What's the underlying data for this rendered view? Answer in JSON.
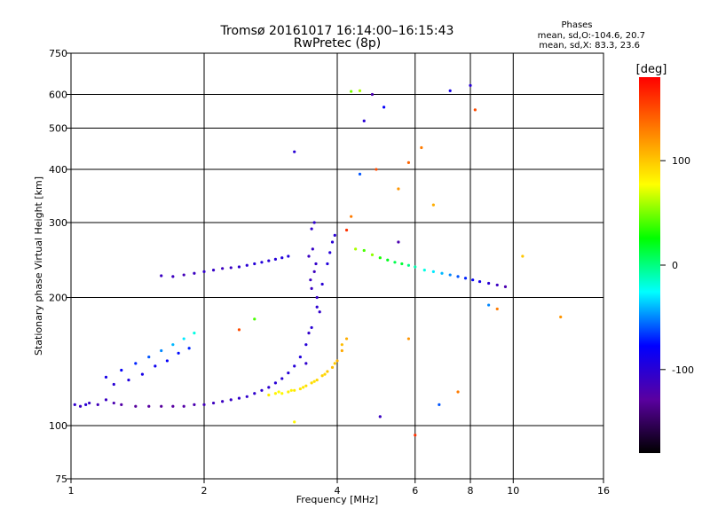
{
  "chart_data": {
    "type": "scatter",
    "title": "Tromsø 20161017 16:14:00–16:15:43",
    "subtitle": "RwPretec (8p)",
    "xlabel": "Frequency [MHz]",
    "ylabel": "Stationary phase Virtual Height [km]",
    "x_scale": "log",
    "y_scale": "log",
    "xlim": [
      1,
      16
    ],
    "ylim": [
      75,
      750
    ],
    "x_ticks": [
      1,
      2,
      4,
      6,
      8,
      10,
      16
    ],
    "y_ticks": [
      75,
      100,
      200,
      300,
      400,
      500,
      600,
      750
    ],
    "grid": true,
    "stats": {
      "title": "Phases",
      "line_o": "mean, sd,O:-104.6, 20.7",
      "line_x": "mean, sd,X:  83.3, 23.6"
    },
    "colorbar": {
      "label": "[deg]",
      "range": [
        -180,
        180
      ],
      "ticks": [
        100,
        0,
        -100
      ],
      "colors": [
        "#ff0000",
        "#ff8000",
        "#ffff00",
        "#00ff00",
        "#00ffff",
        "#0000ff",
        "#5a00a0",
        "#000000"
      ]
    },
    "series": [
      {
        "values": [
          [
            1.02,
            112,
            -105
          ],
          [
            1.05,
            111,
            -110
          ],
          [
            1.08,
            112,
            -100
          ],
          [
            1.1,
            113,
            -108
          ],
          [
            1.15,
            112,
            -115
          ],
          [
            1.2,
            115,
            -110
          ],
          [
            1.25,
            113,
            -120
          ],
          [
            1.3,
            112,
            -125
          ],
          [
            1.4,
            111,
            -130
          ],
          [
            1.5,
            111,
            -128
          ],
          [
            1.6,
            111,
            -130
          ],
          [
            1.7,
            111,
            -128
          ],
          [
            1.8,
            111,
            -125
          ],
          [
            1.9,
            112,
            -120
          ],
          [
            2.0,
            112,
            -115
          ],
          [
            2.1,
            113,
            -112
          ],
          [
            2.2,
            114,
            -110
          ],
          [
            2.3,
            115,
            -108
          ],
          [
            2.4,
            116,
            -106
          ],
          [
            2.5,
            117,
            -104
          ],
          [
            2.6,
            119,
            -104
          ],
          [
            2.7,
            121,
            -102
          ],
          [
            2.8,
            123,
            -102
          ],
          [
            2.9,
            126,
            -100
          ],
          [
            3.0,
            129,
            -100
          ],
          [
            3.1,
            133,
            -98
          ],
          [
            3.2,
            138,
            -98
          ],
          [
            3.3,
            145,
            -96
          ],
          [
            3.4,
            155,
            -98
          ],
          [
            3.5,
            170,
            -100
          ],
          [
            3.6,
            190,
            -102
          ],
          [
            3.7,
            215,
            -100
          ],
          [
            3.8,
            240,
            -96
          ],
          [
            3.85,
            255,
            -98
          ],
          [
            3.9,
            270,
            -100
          ],
          [
            3.95,
            280,
            -100
          ],
          [
            3.5,
            210,
            -110
          ],
          [
            3.55,
            230,
            -112
          ],
          [
            3.45,
            250,
            -110
          ],
          [
            3.5,
            290,
            -105
          ],
          [
            3.55,
            300,
            -104
          ],
          [
            3.6,
            200,
            -108
          ],
          [
            3.65,
            185,
            -106
          ],
          [
            3.4,
            140,
            -104
          ],
          [
            3.45,
            165,
            -106
          ],
          [
            3.52,
            260,
            -108
          ],
          [
            3.48,
            220,
            -110
          ],
          [
            3.58,
            240,
            -106
          ]
        ]
      },
      {
        "values": [
          [
            2.8,
            118,
            85
          ],
          [
            2.9,
            119,
            82
          ],
          [
            3.0,
            119,
            80
          ],
          [
            3.1,
            120,
            84
          ],
          [
            3.2,
            121,
            86
          ],
          [
            3.3,
            122,
            88
          ],
          [
            3.4,
            124,
            90
          ],
          [
            3.5,
            126,
            92
          ],
          [
            3.6,
            128,
            94
          ],
          [
            3.7,
            131,
            96
          ],
          [
            3.8,
            134,
            100
          ],
          [
            3.9,
            137,
            104
          ],
          [
            4.0,
            142,
            108
          ],
          [
            4.1,
            150,
            112
          ],
          [
            4.2,
            160,
            110
          ],
          [
            4.1,
            155,
            104
          ],
          [
            3.95,
            140,
            98
          ],
          [
            3.75,
            132,
            92
          ],
          [
            3.55,
            127,
            88
          ],
          [
            3.35,
            123,
            86
          ],
          [
            3.15,
            121,
            82
          ],
          [
            2.95,
            120,
            78
          ]
        ]
      },
      {
        "values": [
          [
            1.6,
            225,
            -110
          ],
          [
            1.7,
            224,
            -112
          ],
          [
            1.8,
            226,
            -115
          ],
          [
            1.9,
            228,
            -110
          ],
          [
            2.0,
            230,
            -105
          ],
          [
            2.1,
            232,
            -108
          ],
          [
            2.2,
            234,
            -112
          ],
          [
            2.3,
            235,
            -110
          ],
          [
            2.4,
            236,
            -104
          ],
          [
            2.5,
            238,
            -100
          ],
          [
            2.6,
            240,
            -98
          ],
          [
            2.7,
            242,
            -96
          ],
          [
            2.8,
            244,
            -100
          ],
          [
            2.9,
            246,
            -98
          ],
          [
            3.0,
            248,
            -96
          ],
          [
            3.1,
            250,
            -95
          ]
        ]
      },
      {
        "values": [
          [
            4.4,
            260,
            60
          ],
          [
            4.6,
            258,
            40
          ],
          [
            4.8,
            252,
            55
          ],
          [
            5.0,
            248,
            30
          ],
          [
            5.2,
            245,
            20
          ],
          [
            5.4,
            242,
            10
          ],
          [
            5.6,
            240,
            15
          ],
          [
            5.8,
            238,
            0
          ],
          [
            6.0,
            236,
            -10
          ],
          [
            6.3,
            232,
            -20
          ],
          [
            6.6,
            230,
            -30
          ],
          [
            6.9,
            228,
            -40
          ],
          [
            7.2,
            226,
            -50
          ],
          [
            7.5,
            224,
            -60
          ],
          [
            7.8,
            222,
            -70
          ],
          [
            8.1,
            220,
            -80
          ],
          [
            8.4,
            218,
            -90
          ],
          [
            8.8,
            216,
            -100
          ],
          [
            9.2,
            214,
            -110
          ],
          [
            9.6,
            212,
            -120
          ]
        ]
      },
      {
        "values": [
          [
            1.2,
            130,
            -90
          ],
          [
            1.3,
            135,
            -80
          ],
          [
            1.4,
            140,
            -70
          ],
          [
            1.5,
            145,
            -60
          ],
          [
            1.6,
            150,
            -50
          ],
          [
            1.7,
            155,
            -40
          ],
          [
            1.8,
            160,
            -30
          ],
          [
            1.9,
            165,
            -20
          ],
          [
            1.25,
            125,
            -100
          ],
          [
            1.35,
            128,
            -95
          ],
          [
            1.45,
            132,
            -90
          ],
          [
            1.55,
            138,
            -85
          ],
          [
            1.65,
            142,
            -80
          ],
          [
            1.75,
            148,
            -75
          ],
          [
            1.85,
            152,
            -70
          ]
        ]
      },
      {
        "values": [
          [
            4.3,
            610,
            50
          ],
          [
            4.5,
            612,
            60
          ],
          [
            4.8,
            600,
            -120
          ],
          [
            7.2,
            612,
            -90
          ],
          [
            8.0,
            630,
            -100
          ],
          [
            8.2,
            552,
            150
          ],
          [
            3.2,
            440,
            -100
          ],
          [
            4.5,
            390,
            -60
          ],
          [
            4.9,
            400,
            150
          ],
          [
            5.5,
            360,
            120
          ],
          [
            6.2,
            450,
            130
          ],
          [
            6.6,
            330,
            110
          ],
          [
            5.1,
            560,
            -80
          ],
          [
            4.6,
            520,
            -100
          ],
          [
            5.8,
            415,
            140
          ],
          [
            6.0,
            95,
            160
          ],
          [
            5.0,
            105,
            -110
          ],
          [
            5.8,
            160,
            120
          ],
          [
            6.8,
            112,
            -60
          ],
          [
            7.5,
            120,
            130
          ],
          [
            10.5,
            250,
            100
          ],
          [
            12.8,
            180,
            120
          ],
          [
            8.8,
            192,
            -50
          ],
          [
            9.2,
            188,
            130
          ],
          [
            3.2,
            102,
            80
          ],
          [
            2.6,
            178,
            40
          ],
          [
            2.4,
            168,
            150
          ],
          [
            4.3,
            310,
            130
          ],
          [
            4.2,
            288,
            160
          ],
          [
            5.5,
            270,
            -120
          ]
        ]
      }
    ]
  }
}
